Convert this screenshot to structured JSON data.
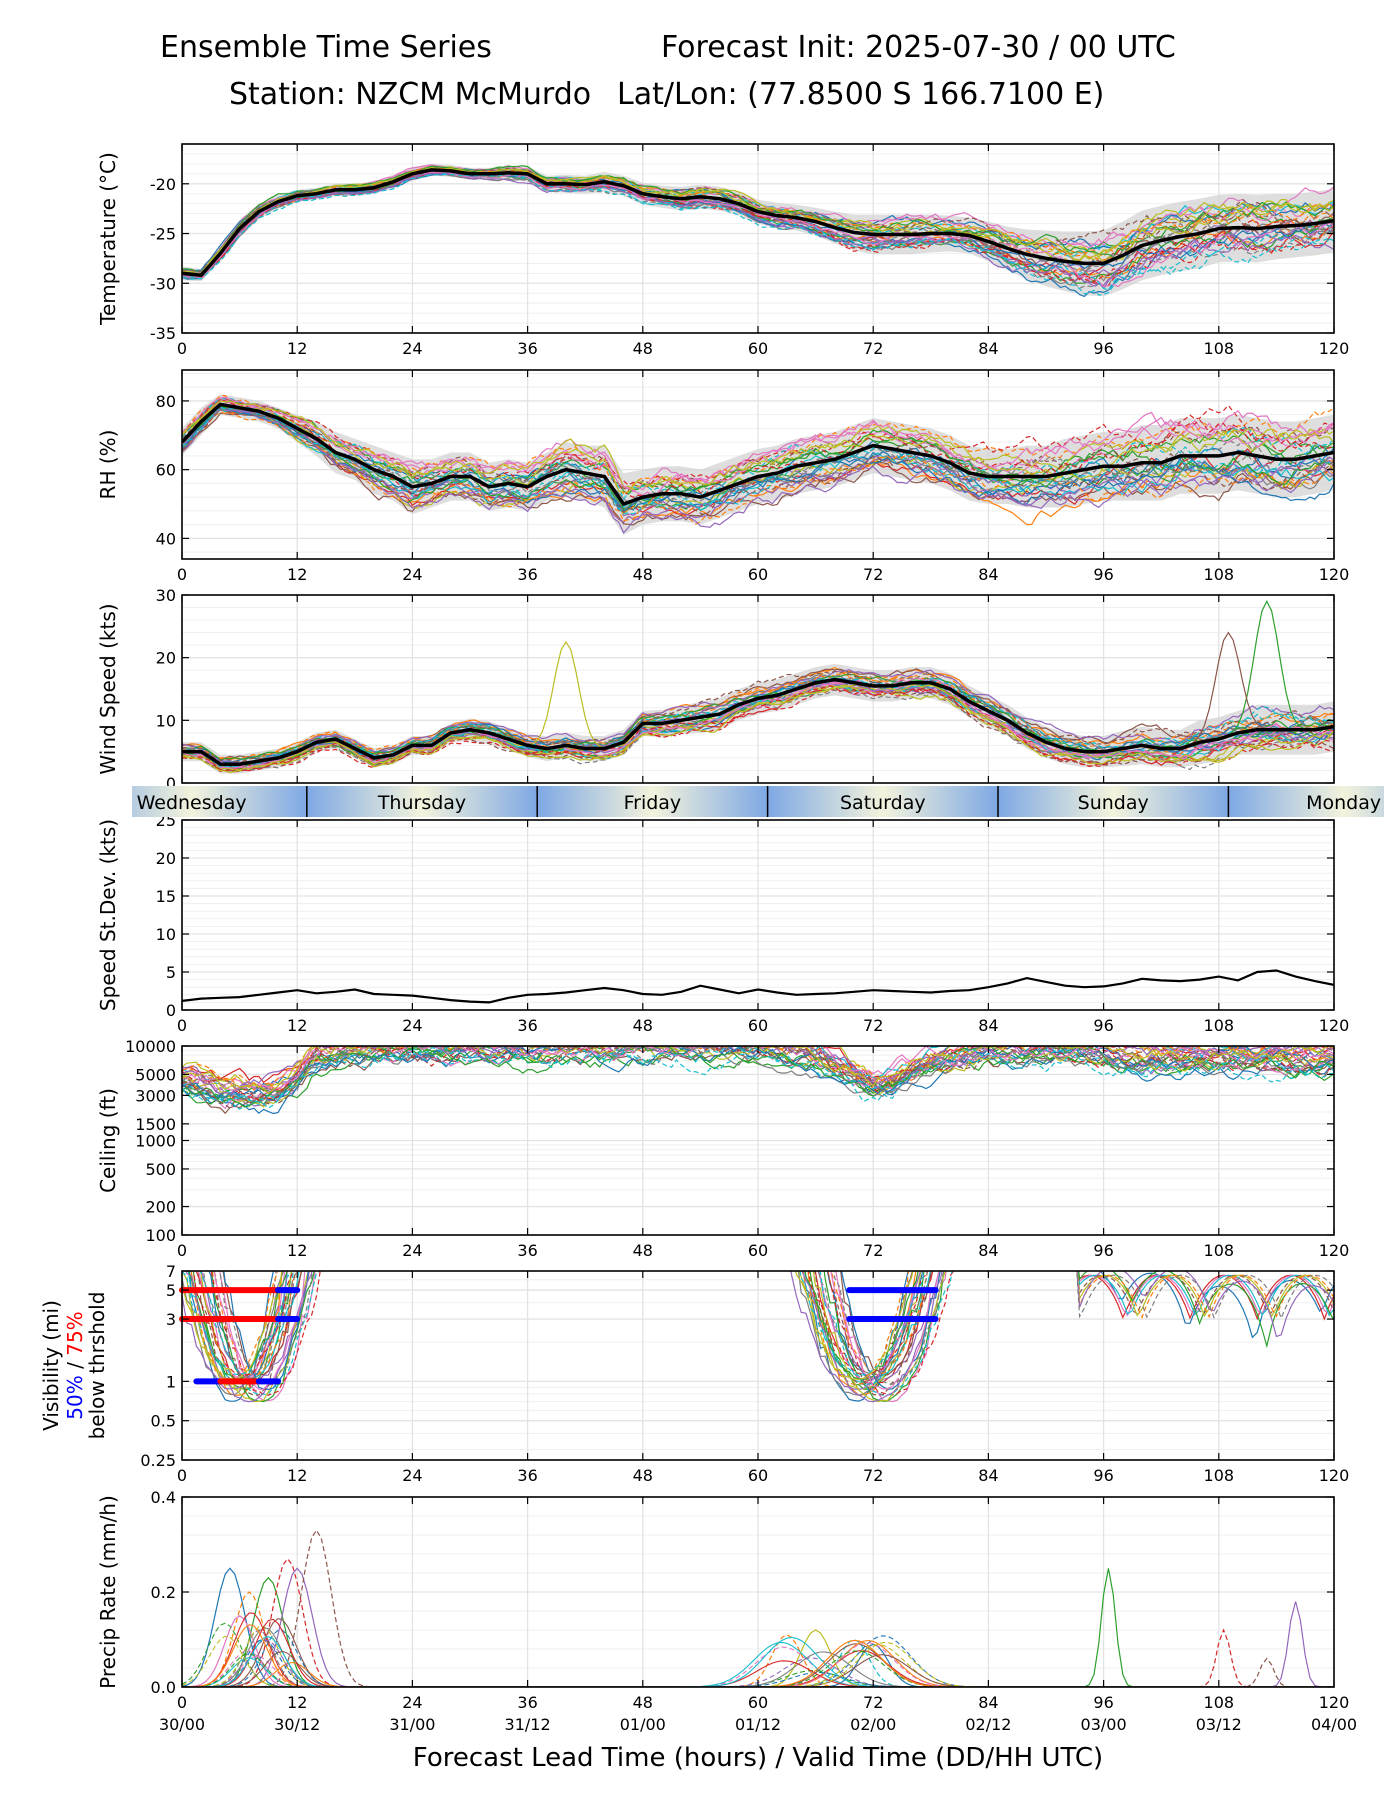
{
  "header": {
    "title_left": "Ensemble Time Series",
    "title_right": "Forecast Init: 2025-07-30 / 00 UTC",
    "station": "Station: NZCM McMurdo",
    "latlon": "Lat/Lon: (77.8500 S 166.7100 E)"
  },
  "colors": {
    "mean": "#000000",
    "spread_fill": "#d3d3d3",
    "grid": "#e3e3e3",
    "vis_50pct": "#0000ff",
    "vis_75pct": "#ff0000",
    "members": [
      "#1f77b4",
      "#ff7f0e",
      "#2ca02c",
      "#d62728",
      "#9467bd",
      "#8c564b",
      "#e377c2",
      "#7f7f7f",
      "#bcbd22",
      "#17becf"
    ]
  },
  "xaxis": {
    "xlim": [
      0,
      120
    ],
    "ticks": [
      0,
      12,
      24,
      36,
      48,
      60,
      72,
      84,
      96,
      108,
      120
    ],
    "valid_labels": [
      "30/00",
      "30/12",
      "31/00",
      "31/12",
      "01/00",
      "01/12",
      "02/00",
      "02/12",
      "03/00",
      "03/12",
      "04/00"
    ],
    "xlabel": "Forecast Lead Time (hours) / Valid Time (DD/HH UTC)"
  },
  "day_strip": {
    "days": [
      "Wednesday",
      "Thursday",
      "Friday",
      "Saturday",
      "Sunday",
      "Monday"
    ],
    "boundaries_hours": [
      13,
      37,
      61,
      85,
      109
    ]
  },
  "chart_data": [
    {
      "id": "temperature",
      "type": "line",
      "ylabel": "Temperature (°C)",
      "ylim": [
        -35,
        -16
      ],
      "yticks": [
        -35,
        -30,
        -25,
        -20
      ],
      "grid": true,
      "mean_series": {
        "x": [
          0,
          2,
          4,
          6,
          8,
          10,
          12,
          14,
          16,
          18,
          20,
          22,
          24,
          26,
          28,
          30,
          32,
          34,
          36,
          38,
          40,
          42,
          44,
          46,
          48,
          50,
          52,
          54,
          56,
          58,
          60,
          62,
          64,
          66,
          68,
          70,
          72,
          74,
          76,
          78,
          80,
          82,
          84,
          86,
          88,
          90,
          92,
          94,
          96,
          98,
          100,
          102,
          104,
          106,
          108,
          110,
          112,
          114,
          116,
          118,
          120
        ],
        "y": [
          -29,
          -29.2,
          -27,
          -24.5,
          -22.8,
          -21.8,
          -21.2,
          -21,
          -20.6,
          -20.6,
          -20.4,
          -19.8,
          -19,
          -18.6,
          -18.7,
          -19,
          -19,
          -18.9,
          -19,
          -20,
          -20,
          -20.1,
          -19.8,
          -20.2,
          -21,
          -21.3,
          -21.5,
          -21.3,
          -21.5,
          -22,
          -22.8,
          -23.2,
          -23.4,
          -23.8,
          -24.4,
          -24.9,
          -25.1,
          -25.1,
          -25.1,
          -25,
          -25,
          -25.2,
          -25.8,
          -26.5,
          -27.1,
          -27.5,
          -27.8,
          -28,
          -28,
          -27.2,
          -26.2,
          -25.7,
          -25.3,
          -25,
          -24.5,
          -24.4,
          -24.5,
          -24.3,
          -24.2,
          -24,
          -23.7
        ]
      },
      "spread_half_width": [
        0.7,
        0.6,
        0.8,
        0.9,
        0.8,
        0.7,
        0.6,
        0.6,
        0.6,
        0.6,
        0.6,
        0.7,
        0.7,
        0.6,
        0.6,
        0.6,
        0.6,
        0.7,
        0.8,
        0.8,
        0.9,
        0.9,
        1,
        1,
        1.1,
        1.1,
        1.2,
        1.2,
        1.2,
        1.2,
        1.2,
        1.3,
        1.3,
        1.4,
        1.6,
        1.8,
        2,
        2,
        2,
        1.9,
        1.8,
        1.8,
        2,
        2.2,
        2.5,
        2.8,
        3,
        3.2,
        3.3,
        3.4,
        3.5,
        3.5,
        3.5,
        3.5,
        3.4,
        3.4,
        3.4,
        3.3,
        3.2,
        3.2,
        3.2
      ],
      "members_shown": 30
    },
    {
      "id": "rh",
      "type": "line",
      "ylabel": "RH (%)",
      "ylim": [
        34,
        89
      ],
      "yticks": [
        40,
        60,
        80
      ],
      "grid": true,
      "mean_series": {
        "x": [
          0,
          2,
          4,
          6,
          8,
          10,
          12,
          14,
          16,
          18,
          20,
          22,
          24,
          26,
          28,
          30,
          32,
          34,
          36,
          38,
          40,
          42,
          44,
          46,
          48,
          50,
          52,
          54,
          56,
          58,
          60,
          62,
          64,
          66,
          68,
          70,
          72,
          74,
          76,
          78,
          80,
          82,
          84,
          86,
          88,
          90,
          92,
          94,
          96,
          98,
          100,
          102,
          104,
          106,
          108,
          110,
          112,
          114,
          116,
          118,
          120
        ],
        "y": [
          68,
          74,
          79,
          78,
          77,
          75,
          72,
          69,
          65,
          63,
          60,
          58,
          55,
          56,
          58,
          58,
          55,
          56,
          55,
          58,
          60,
          59,
          58,
          50,
          52,
          53,
          53,
          52,
          54,
          56,
          58,
          59,
          61,
          62,
          63,
          65,
          67,
          66,
          65,
          64,
          62,
          59,
          58,
          58,
          58,
          58,
          59,
          60,
          61,
          61,
          62,
          62,
          64,
          64,
          64,
          65,
          64,
          63,
          63,
          64,
          65
        ]
      },
      "spread_half_width": [
        4,
        4,
        3,
        3,
        3,
        3,
        4,
        5,
        6,
        6,
        7,
        7,
        8,
        7,
        7,
        7,
        7,
        7,
        7,
        7,
        8,
        8,
        9,
        9,
        8,
        8,
        8,
        8,
        8,
        8,
        8,
        8,
        8,
        8,
        8,
        8,
        8,
        8,
        8,
        8,
        8,
        8,
        8,
        8,
        9,
        9,
        10,
        10,
        10,
        10,
        11,
        11,
        11,
        11,
        11,
        11,
        11,
        11,
        11,
        11,
        11
      ],
      "members_shown": 30
    },
    {
      "id": "wind_speed",
      "type": "line",
      "ylabel": "Wind Speed (kts)",
      "ylim": [
        0,
        30
      ],
      "yticks": [
        0,
        10,
        20,
        30
      ],
      "grid": true,
      "mean_series": {
        "x": [
          0,
          2,
          4,
          6,
          8,
          10,
          12,
          14,
          16,
          18,
          20,
          22,
          24,
          26,
          28,
          30,
          32,
          34,
          36,
          38,
          40,
          42,
          44,
          46,
          48,
          50,
          52,
          54,
          56,
          58,
          60,
          62,
          64,
          66,
          68,
          70,
          72,
          74,
          76,
          78,
          80,
          82,
          84,
          86,
          88,
          90,
          92,
          94,
          96,
          98,
          100,
          102,
          104,
          106,
          108,
          110,
          112,
          114,
          116,
          118,
          120
        ],
        "y": [
          5,
          5,
          3,
          3,
          3.5,
          4,
          5,
          6.5,
          7,
          5.5,
          4,
          4.5,
          6,
          6,
          8,
          8.5,
          8,
          7,
          6,
          5.5,
          6,
          5.5,
          5.5,
          6.5,
          9.5,
          9.5,
          10,
          10.5,
          11,
          12.5,
          13.5,
          14,
          15,
          16,
          16.5,
          16,
          15.5,
          15.5,
          16,
          16,
          15,
          13,
          11.5,
          10,
          8,
          6.5,
          5.5,
          5,
          5,
          5.5,
          6,
          5.5,
          5.5,
          6.5,
          7,
          8,
          8.5,
          8.5,
          8.5,
          8.5,
          9
        ]
      },
      "spread_half_width": [
        1.5,
        1.5,
        1.5,
        1.5,
        1.5,
        1.5,
        1.5,
        1.5,
        1.5,
        1.5,
        1.5,
        1.5,
        1.5,
        1.5,
        1.5,
        1.8,
        1.8,
        1.8,
        1.8,
        2,
        2,
        2,
        2,
        2,
        2,
        2.2,
        2.2,
        2.5,
        2.5,
        2.5,
        2.5,
        2.5,
        2.5,
        2.5,
        2.5,
        2.5,
        2.5,
        2.5,
        2.5,
        2.5,
        2.5,
        2.5,
        2.5,
        2.5,
        2.5,
        2.5,
        2.5,
        2.5,
        2.5,
        2.8,
        3,
        3,
        3,
        3.5,
        3.5,
        3.5,
        4,
        4,
        4,
        4,
        4
      ],
      "members_shown": 30,
      "outlier_peaks": [
        {
          "x": 113,
          "y": 29
        },
        {
          "x": 109,
          "y": 24
        },
        {
          "x": 40,
          "y": 22.5
        }
      ]
    },
    {
      "id": "speed_stddev",
      "type": "line",
      "ylabel": "Speed St.Dev. (kts)",
      "ylim": [
        0,
        25
      ],
      "yticks": [
        0,
        5,
        10,
        15,
        20,
        25
      ],
      "grid": true,
      "series": [
        {
          "x": [
            0,
            2,
            4,
            6,
            8,
            10,
            12,
            14,
            16,
            18,
            20,
            22,
            24,
            26,
            28,
            30,
            32,
            34,
            36,
            38,
            40,
            42,
            44,
            46,
            48,
            50,
            52,
            54,
            56,
            58,
            60,
            62,
            64,
            66,
            68,
            70,
            72,
            74,
            76,
            78,
            80,
            82,
            84,
            86,
            88,
            90,
            92,
            94,
            96,
            98,
            100,
            102,
            104,
            106,
            108,
            110,
            112,
            114,
            116,
            118,
            120
          ],
          "y": [
            1.2,
            1.5,
            1.6,
            1.7,
            2.0,
            2.3,
            2.6,
            2.2,
            2.4,
            2.7,
            2.1,
            2.0,
            1.9,
            1.6,
            1.3,
            1.1,
            1.0,
            1.6,
            2.0,
            2.1,
            2.3,
            2.6,
            2.9,
            2.6,
            2.1,
            2.0,
            2.4,
            3.2,
            2.7,
            2.2,
            2.7,
            2.3,
            2.0,
            2.1,
            2.2,
            2.4,
            2.6,
            2.5,
            2.4,
            2.3,
            2.5,
            2.6,
            3.0,
            3.5,
            4.2,
            3.7,
            3.2,
            3.0,
            3.1,
            3.5,
            4.1,
            3.9,
            3.8,
            4.0,
            4.4,
            3.9,
            5.0,
            5.2,
            4.4,
            3.8,
            3.3
          ]
        }
      ]
    },
    {
      "id": "ceiling",
      "type": "line",
      "ylabel": "Ceiling (ft)",
      "yscale": "log",
      "ylim": [
        100,
        10000
      ],
      "yticks": [
        100,
        200,
        500,
        1000,
        1500,
        3000,
        5000,
        10000
      ],
      "grid": true,
      "mean_like_envelope": {
        "x": [
          0,
          4,
          8,
          10,
          12,
          14,
          18,
          24,
          36,
          48,
          60,
          66,
          70,
          72,
          74,
          78,
          82,
          86,
          96,
          100,
          104,
          108,
          112,
          116,
          120
        ],
        "y": [
          4500,
          3200,
          3000,
          3200,
          4500,
          7500,
          9000,
          9500,
          9500,
          10000,
          10000,
          8000,
          5000,
          3800,
          4200,
          6500,
          8500,
          9000,
          8500,
          7500,
          7000,
          8000,
          7500,
          7000,
          7500
        ]
      },
      "members_shown": 30
    },
    {
      "id": "visibility",
      "type": "line",
      "ylabel": "Visibility (mi)",
      "ylabel_50": "50%",
      "ylabel_sep": " / ",
      "ylabel_75": "75%",
      "ylabel_2": "below thrshold",
      "yscale": "log",
      "ylim": [
        0.25,
        7
      ],
      "yticks": [
        0.25,
        0.5,
        1,
        3,
        5,
        7
      ],
      "grid": true,
      "threshold_bars": [
        {
          "level": 5,
          "pct": "75%",
          "x0": 0,
          "x1": 10
        },
        {
          "level": 5,
          "pct": "50%",
          "x0": 10,
          "x1": 12
        },
        {
          "level": 3,
          "pct": "75%",
          "x0": 0,
          "x1": 10
        },
        {
          "level": 3,
          "pct": "50%",
          "x0": 10,
          "x1": 12
        },
        {
          "level": 1,
          "pct": "50%",
          "x0": 1.5,
          "x1": 4
        },
        {
          "level": 1,
          "pct": "75%",
          "x0": 4,
          "x1": 8
        },
        {
          "level": 1,
          "pct": "50%",
          "x0": 8,
          "x1": 10
        },
        {
          "level": 5,
          "pct": "50%",
          "x0": 69.5,
          "x1": 78.5
        },
        {
          "level": 3,
          "pct": "50%",
          "x0": 69.5,
          "x1": 78.5
        }
      ],
      "members_shown": 30
    },
    {
      "id": "precip_rate",
      "type": "line",
      "ylabel": "Precip Rate (mm/h)",
      "ylim": [
        0,
        0.4
      ],
      "yticks": [
        0.0,
        0.2,
        0.4
      ],
      "ytick_labels": [
        "0.0",
        "0.2",
        "0.4"
      ],
      "grid": true,
      "member_peaks": [
        {
          "x": 5,
          "y": 0.25
        },
        {
          "x": 7,
          "y": 0.2
        },
        {
          "x": 9,
          "y": 0.23
        },
        {
          "x": 11,
          "y": 0.27
        },
        {
          "x": 12,
          "y": 0.25
        },
        {
          "x": 14,
          "y": 0.33
        },
        {
          "x": 6,
          "y": 0.15
        },
        {
          "x": 8,
          "y": 0.12
        },
        {
          "x": 66,
          "y": 0.12
        },
        {
          "x": 70,
          "y": 0.1
        },
        {
          "x": 72,
          "y": 0.09
        },
        {
          "x": 63,
          "y": 0.11
        },
        {
          "x": 96.5,
          "y": 0.25
        },
        {
          "x": 108.5,
          "y": 0.12
        },
        {
          "x": 116,
          "y": 0.18
        },
        {
          "x": 113,
          "y": 0.06
        }
      ],
      "members_shown": 30
    }
  ]
}
